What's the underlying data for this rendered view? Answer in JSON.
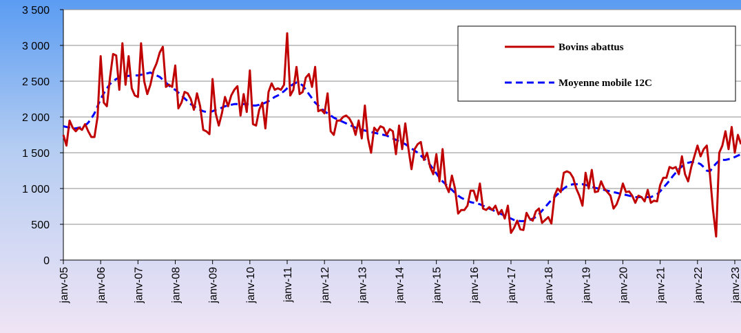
{
  "chart_data": {
    "type": "line",
    "categories": [
      "janv-05",
      null,
      null,
      null,
      null,
      null,
      null,
      null,
      null,
      null,
      null,
      null,
      "janv-06",
      null,
      null,
      null,
      null,
      null,
      null,
      null,
      null,
      null,
      null,
      null,
      "janv-07",
      null,
      null,
      null,
      null,
      null,
      null,
      null,
      null,
      null,
      null,
      null,
      "janv-08",
      null,
      null,
      null,
      null,
      null,
      null,
      null,
      null,
      null,
      null,
      null,
      "janv-09",
      null,
      null,
      null,
      null,
      null,
      null,
      null,
      null,
      null,
      null,
      null,
      "janv-10",
      null,
      null,
      null,
      null,
      null,
      null,
      null,
      null,
      null,
      null,
      null,
      "janv-11",
      null,
      null,
      null,
      null,
      null,
      null,
      null,
      null,
      null,
      null,
      null,
      "janv-12",
      null,
      null,
      null,
      null,
      null,
      null,
      null,
      null,
      null,
      null,
      null,
      "janv-13",
      null,
      null,
      null,
      null,
      null,
      null,
      null,
      null,
      null,
      null,
      null,
      "janv-14",
      null,
      null,
      null,
      null,
      null,
      null,
      null,
      null,
      null,
      null,
      null,
      "janv-15",
      null,
      null,
      null,
      null,
      null,
      null,
      null,
      null,
      null,
      null,
      null,
      "janv-16",
      null,
      null,
      null,
      null,
      null,
      null,
      null,
      null,
      null,
      null,
      null,
      "janv-17",
      null,
      null,
      null,
      null,
      null,
      null,
      null,
      null,
      null,
      null,
      null,
      "janv-18",
      null,
      null,
      null,
      null,
      null,
      null,
      null,
      null,
      null,
      null,
      null,
      "janv-19",
      null,
      null,
      null,
      null,
      null,
      null,
      null,
      null,
      null,
      null,
      null,
      "janv-20",
      null,
      null,
      null,
      null,
      null,
      null,
      null,
      null,
      null,
      null,
      null,
      "janv-21",
      null,
      null,
      null,
      null,
      null,
      null,
      null,
      null,
      null,
      null,
      null,
      "janv-22",
      null,
      null,
      null,
      null,
      null,
      null,
      null,
      null,
      null,
      null,
      null,
      "janv-23",
      null,
      null
    ],
    "series": [
      {
        "name": "Bovins abattus",
        "color": "#c00000",
        "dash": false,
        "values": [
          1750,
          1600,
          1950,
          1850,
          1800,
          1850,
          1820,
          1900,
          1800,
          1720,
          1720,
          2000,
          2850,
          2200,
          2150,
          2550,
          2880,
          2860,
          2380,
          3030,
          2450,
          2850,
          2400,
          2300,
          2280,
          3030,
          2500,
          2320,
          2450,
          2650,
          2750,
          2900,
          2980,
          2420,
          2450,
          2420,
          2720,
          2120,
          2200,
          2350,
          2330,
          2250,
          2100,
          2330,
          2150,
          1820,
          1800,
          1760,
          2530,
          2050,
          1880,
          2050,
          2280,
          2150,
          2300,
          2380,
          2430,
          2020,
          2320,
          2070,
          2650,
          1900,
          1880,
          2100,
          2200,
          1840,
          2350,
          2470,
          2380,
          2400,
          2380,
          2450,
          3170,
          2300,
          2380,
          2700,
          2320,
          2350,
          2550,
          2600,
          2420,
          2700,
          2080,
          2100,
          2050,
          2330,
          1800,
          1750,
          1950,
          1950,
          2000,
          2020,
          1980,
          1900,
          1750,
          1950,
          1700,
          2160,
          1700,
          1500,
          1850,
          1800,
          1870,
          1850,
          1750,
          1830,
          1800,
          1480,
          1880,
          1550,
          1910,
          1560,
          1270,
          1550,
          1620,
          1650,
          1400,
          1500,
          1300,
          1200,
          1480,
          1100,
          1550,
          1050,
          950,
          1180,
          1000,
          650,
          700,
          700,
          760,
          970,
          970,
          830,
          1070,
          720,
          700,
          740,
          700,
          760,
          640,
          700,
          580,
          760,
          380,
          450,
          550,
          430,
          420,
          660,
          580,
          550,
          680,
          720,
          520,
          560,
          600,
          510,
          900,
          1000,
          950,
          1220,
          1240,
          1220,
          1150,
          1000,
          900,
          760,
          1220,
          1000,
          1260,
          950,
          960,
          1100,
          1000,
          950,
          900,
          720,
          780,
          900,
          1070,
          950,
          960,
          900,
          800,
          900,
          880,
          820,
          980,
          800,
          830,
          820,
          1050,
          1150,
          1150,
          1300,
          1280,
          1300,
          1200,
          1450,
          1200,
          1100,
          1300,
          1450,
          1600,
          1450,
          1550,
          1600,
          1200,
          700,
          330,
          1500,
          1600,
          1800,
          1550,
          1860,
          1500,
          1750,
          1620
        ]
      },
      {
        "name": "Moyenne mobile 12C",
        "color": "#0000ff",
        "dash": true,
        "values": [
          1870,
          1860,
          1850,
          1840,
          1840,
          1850,
          1860,
          1880,
          1920,
          1980,
          2050,
          2150,
          2250,
          2330,
          2400,
          2460,
          2500,
          2530,
          2550,
          2560,
          2570,
          2575,
          2580,
          2580,
          2580,
          2590,
          2600,
          2610,
          2620,
          2600,
          2580,
          2560,
          2520,
          2480,
          2440,
          2400,
          2380,
          2340,
          2300,
          2260,
          2220,
          2180,
          2150,
          2120,
          2100,
          2080,
          2070,
          2070,
          2080,
          2100,
          2110,
          2130,
          2150,
          2160,
          2170,
          2180,
          2180,
          2180,
          2180,
          2180,
          2170,
          2160,
          2160,
          2170,
          2180,
          2200,
          2220,
          2250,
          2280,
          2300,
          2330,
          2360,
          2400,
          2430,
          2460,
          2480,
          2470,
          2440,
          2380,
          2320,
          2260,
          2200,
          2160,
          2120,
          2080,
          2050,
          2020,
          1990,
          1970,
          1950,
          1930,
          1910,
          1890,
          1870,
          1850,
          1830,
          1820,
          1810,
          1800,
          1790,
          1780,
          1770,
          1760,
          1750,
          1740,
          1720,
          1700,
          1680,
          1660,
          1640,
          1620,
          1590,
          1560,
          1530,
          1500,
          1460,
          1420,
          1380,
          1330,
          1270,
          1210,
          1150,
          1100,
          1060,
          1020,
          980,
          940,
          900,
          870,
          850,
          830,
          810,
          800,
          790,
          780,
          760,
          740,
          720,
          700,
          680,
          660,
          640,
          620,
          600,
          580,
          560,
          550,
          545,
          545,
          550,
          560,
          580,
          600,
          640,
          690,
          740,
          790,
          840,
          880,
          920,
          960,
          1000,
          1030,
          1050,
          1060,
          1060,
          1060,
          1060,
          1050,
          1040,
          1030,
          1010,
          1000,
          990,
          980,
          970,
          960,
          950,
          940,
          930,
          920,
          910,
          900,
          890,
          880,
          880,
          880,
          880,
          880,
          880,
          900,
          920,
          960,
          1010,
          1060,
          1110,
          1170,
          1220,
          1270,
          1310,
          1340,
          1360,
          1370,
          1370,
          1360,
          1340,
          1300,
          1250,
          1240,
          1300,
          1350,
          1390,
          1400,
          1400,
          1410,
          1420,
          1440,
          1460,
          1480
        ]
      }
    ],
    "ylim": [
      0,
      3500
    ],
    "yticks": [
      0,
      500,
      {
        "value": 1000,
        "label": "1 000"
      },
      {
        "value": 1500,
        "label": "1 500"
      },
      {
        "value": 2000,
        "label": "2 000"
      },
      {
        "value": 2500,
        "label": "2 500"
      },
      {
        "value": 3000,
        "label": "3 000"
      },
      {
        "value": 3500,
        "label": "3 500"
      }
    ],
    "grid": true,
    "legend": "upper right"
  }
}
